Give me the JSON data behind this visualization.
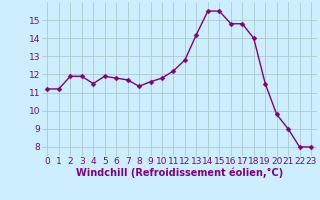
{
  "x": [
    0,
    1,
    2,
    3,
    4,
    5,
    6,
    7,
    8,
    9,
    10,
    11,
    12,
    13,
    14,
    15,
    16,
    17,
    18,
    19,
    20,
    21,
    22,
    23
  ],
  "y": [
    11.2,
    11.2,
    11.9,
    11.9,
    11.5,
    11.9,
    11.8,
    11.7,
    11.35,
    11.6,
    11.8,
    12.2,
    12.8,
    14.2,
    15.5,
    15.5,
    14.8,
    14.8,
    14.0,
    11.5,
    9.8,
    9.0,
    8.0,
    8.0
  ],
  "line_color": "#800080",
  "marker_color": "#800080",
  "bg_color": "#cceeff",
  "grid_color": "#aacccc",
  "xlabel": "Windchill (Refroidissement éolien,°C)",
  "xlim": [
    -0.5,
    23.5
  ],
  "ylim": [
    7.5,
    16.0
  ],
  "yticks": [
    8,
    9,
    10,
    11,
    12,
    13,
    14,
    15
  ],
  "xticks": [
    0,
    1,
    2,
    3,
    4,
    5,
    6,
    7,
    8,
    9,
    10,
    11,
    12,
    13,
    14,
    15,
    16,
    17,
    18,
    19,
    20,
    21,
    22,
    23
  ],
  "xlabel_fontsize": 7.0,
  "tick_fontsize": 6.5,
  "line_width": 1.0,
  "marker_size": 2.5
}
